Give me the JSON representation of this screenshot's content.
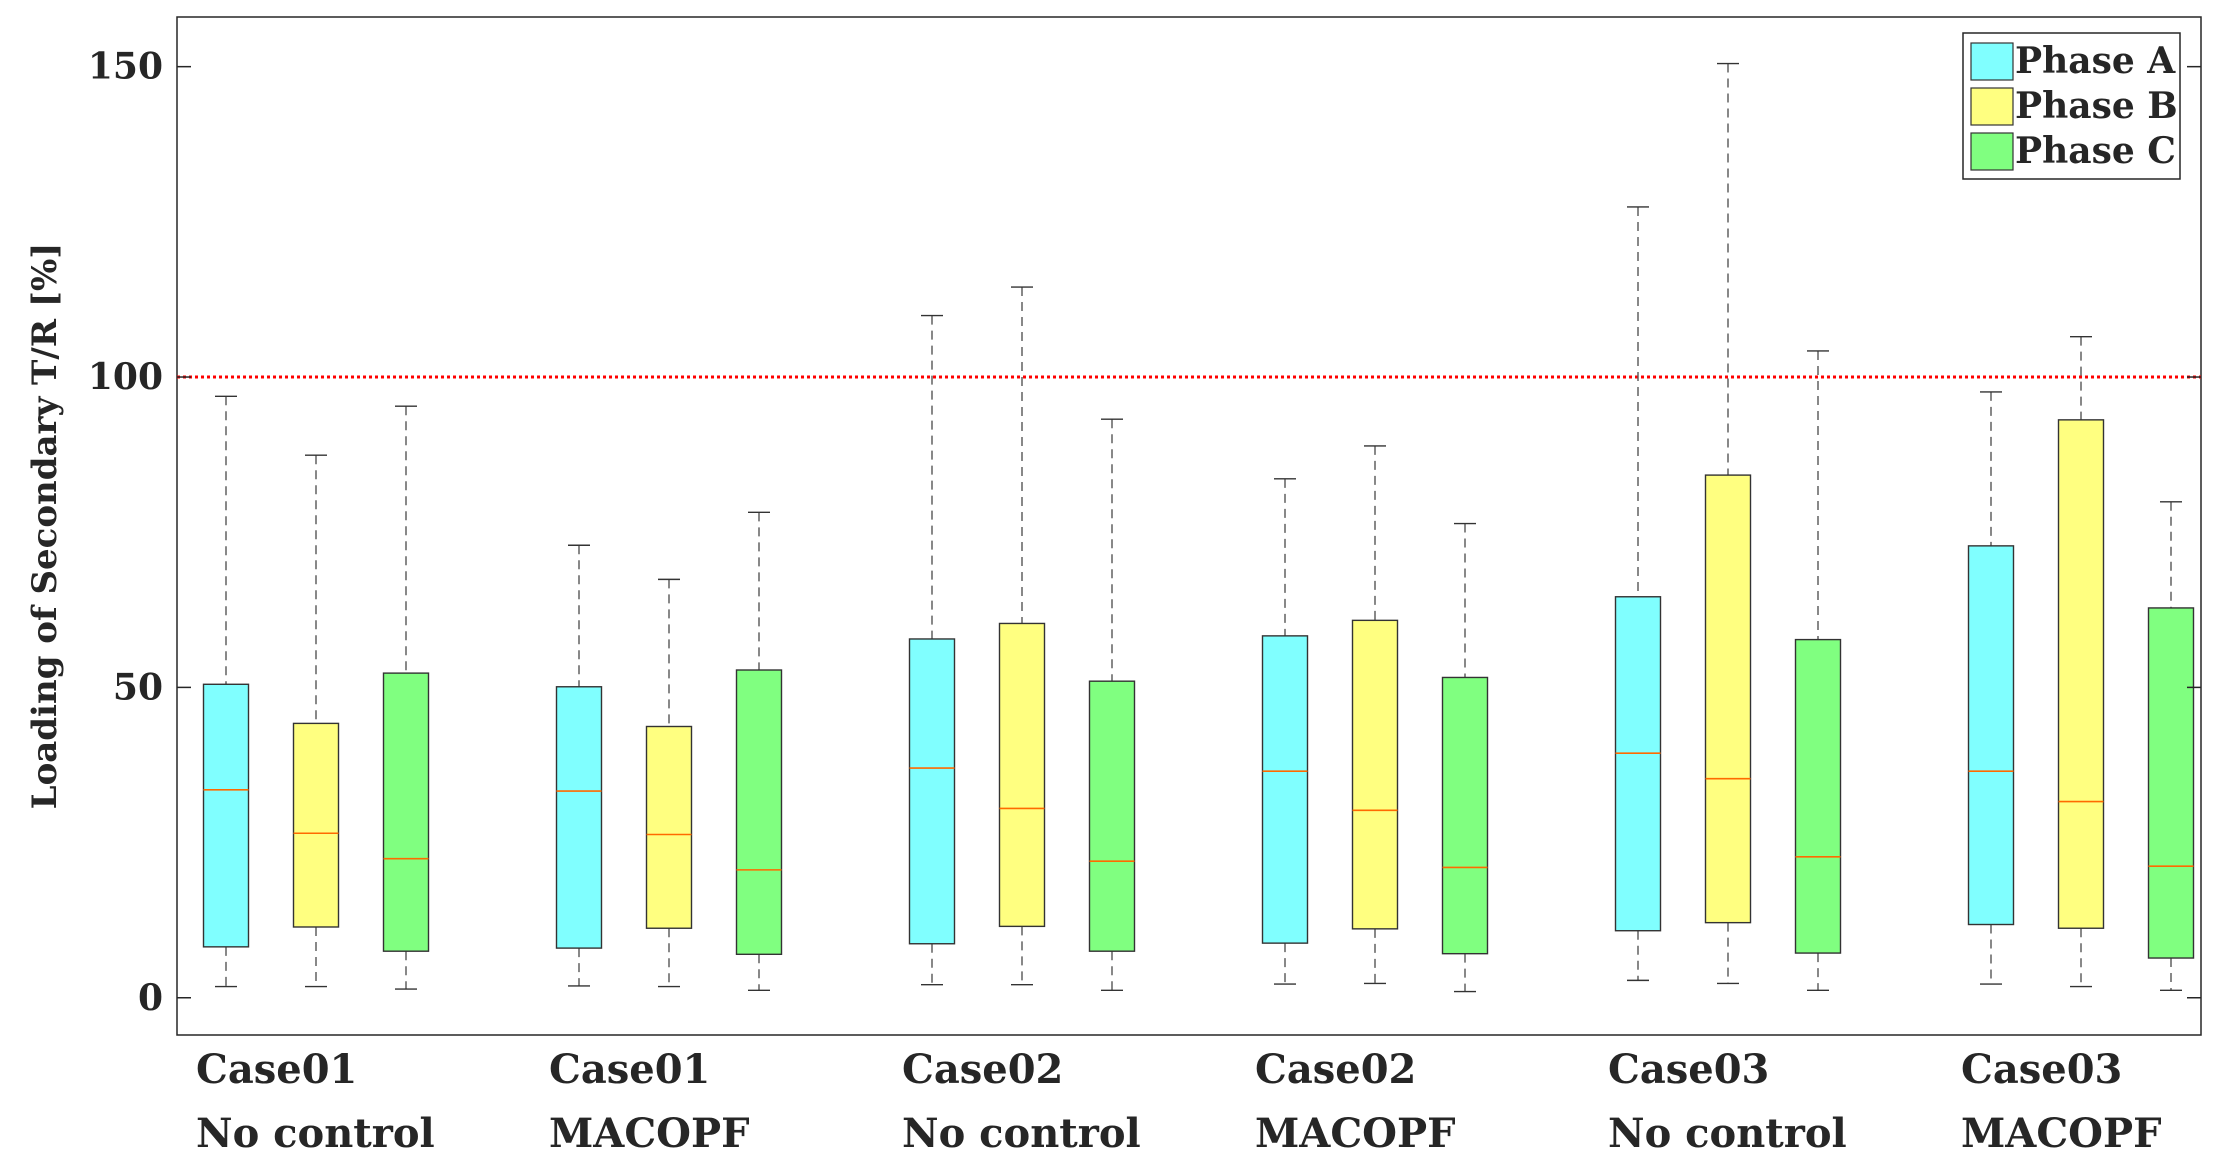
{
  "chart_data": {
    "type": "box",
    "title": "",
    "xlabel": "",
    "ylabel": "Loading of Secondary T/R  [%]",
    "ylim": [
      -6,
      158
    ],
    "yticks": [
      0,
      50,
      100,
      150
    ],
    "ytick_labels": [
      "0",
      "50",
      "100",
      "150"
    ],
    "grid": false,
    "legend_position": "top-right",
    "reference_line": {
      "y": 100,
      "color": "#ff0000",
      "style": "dotted"
    },
    "series": [
      {
        "name": "Phase A",
        "color": "#80ffff"
      },
      {
        "name": "Phase B",
        "color": "#ffff80"
      },
      {
        "name": "Phase C",
        "color": "#80ff80"
      }
    ],
    "groups": [
      {
        "line1": "Case01",
        "line2": "No control",
        "boxes": [
          {
            "phase": "Phase A",
            "min": 1.8,
            "q1": 8.2,
            "median": 33.5,
            "q3": 50.5,
            "max": 96.9
          },
          {
            "phase": "Phase B",
            "min": 1.8,
            "q1": 11.4,
            "median": 26.5,
            "q3": 44.2,
            "max": 87.4
          },
          {
            "phase": "Phase C",
            "min": 1.4,
            "q1": 7.5,
            "median": 22.4,
            "q3": 52.3,
            "max": 95.3
          }
        ]
      },
      {
        "line1": "Case01",
        "line2": "MACOPF",
        "boxes": [
          {
            "phase": "Phase A",
            "min": 1.9,
            "q1": 8.0,
            "median": 33.3,
            "q3": 50.1,
            "max": 72.9
          },
          {
            "phase": "Phase B",
            "min": 1.8,
            "q1": 11.2,
            "median": 26.3,
            "q3": 43.7,
            "max": 67.4
          },
          {
            "phase": "Phase C",
            "min": 1.2,
            "q1": 7.0,
            "median": 20.6,
            "q3": 52.8,
            "max": 78.2
          }
        ]
      },
      {
        "line1": "Case02",
        "line2": "No control",
        "boxes": [
          {
            "phase": "Phase A",
            "min": 2.1,
            "q1": 8.7,
            "median": 37.0,
            "q3": 57.8,
            "max": 109.9
          },
          {
            "phase": "Phase B",
            "min": 2.1,
            "q1": 11.5,
            "median": 30.5,
            "q3": 60.3,
            "max": 114.5
          },
          {
            "phase": "Phase C",
            "min": 1.2,
            "q1": 7.5,
            "median": 22.0,
            "q3": 51.0,
            "max": 93.2
          }
        ]
      },
      {
        "line1": "Case02",
        "line2": "MACOPF",
        "boxes": [
          {
            "phase": "Phase A",
            "min": 2.2,
            "q1": 8.8,
            "median": 36.5,
            "q3": 58.3,
            "max": 83.6
          },
          {
            "phase": "Phase B",
            "min": 2.3,
            "q1": 11.1,
            "median": 30.2,
            "q3": 60.8,
            "max": 88.9
          },
          {
            "phase": "Phase C",
            "min": 1.0,
            "q1": 7.1,
            "median": 21.0,
            "q3": 51.6,
            "max": 76.4
          }
        ]
      },
      {
        "line1": "Case03",
        "line2": "No control",
        "boxes": [
          {
            "phase": "Phase A",
            "min": 2.8,
            "q1": 10.8,
            "median": 39.4,
            "q3": 64.6,
            "max": 127.4
          },
          {
            "phase": "Phase B",
            "min": 2.3,
            "q1": 12.1,
            "median": 35.3,
            "q3": 84.2,
            "max": 150.5
          },
          {
            "phase": "Phase C",
            "min": 1.2,
            "q1": 7.2,
            "median": 22.7,
            "q3": 57.7,
            "max": 104.2
          }
        ]
      },
      {
        "line1": "Case03",
        "line2": "MACOPF",
        "boxes": [
          {
            "phase": "Phase A",
            "min": 2.2,
            "q1": 11.8,
            "median": 36.5,
            "q3": 72.8,
            "max": 97.6
          },
          {
            "phase": "Phase B",
            "min": 1.8,
            "q1": 11.2,
            "median": 31.6,
            "q3": 93.1,
            "max": 106.5
          },
          {
            "phase": "Phase C",
            "min": 1.2,
            "q1": 6.4,
            "median": 21.2,
            "q3": 62.8,
            "max": 79.9
          }
        ]
      }
    ]
  }
}
